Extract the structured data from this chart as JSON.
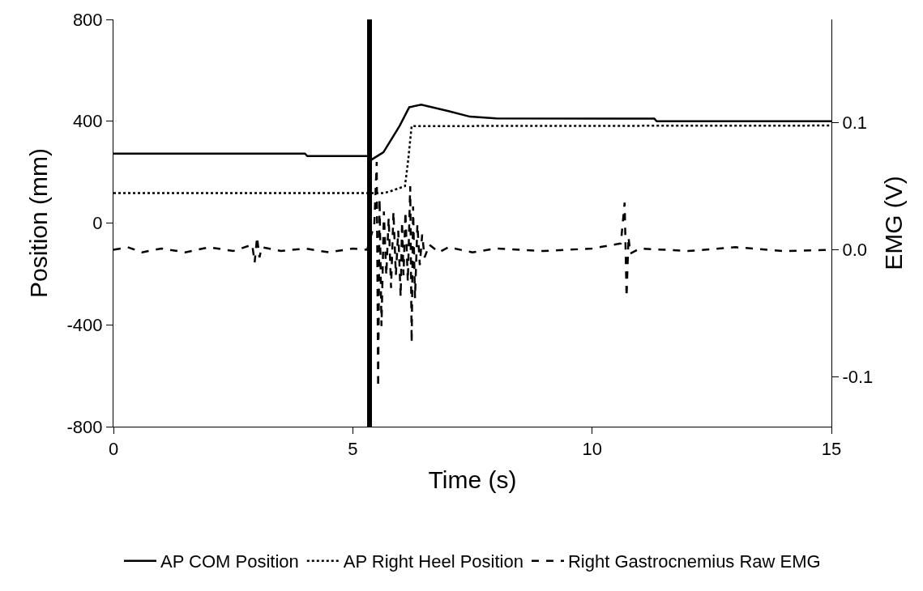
{
  "chart_data": {
    "type": "line",
    "xlabel": "Time (s)",
    "ylabel": "Position (mm)",
    "y2label": "EMG (V)",
    "xlim": [
      0,
      15
    ],
    "xticks": [
      0,
      5,
      10,
      15
    ],
    "ylim": [
      -800,
      800
    ],
    "yticks": [
      -800,
      -400,
      0,
      400,
      800
    ],
    "y2lim": [
      -0.139,
      0.181
    ],
    "y2ticks": [
      {
        "value": -0.1,
        "label": "-0.1"
      },
      {
        "value": 0,
        "label": "0.0"
      },
      {
        "value": 0.1,
        "label": "0.1"
      }
    ],
    "legend": "bottom",
    "marker": "none",
    "ref_lines": [
      {
        "axis": "x",
        "value": 5.35,
        "color": "#000000"
      }
    ],
    "series": [
      {
        "name": "AP COM Position",
        "color": "#000000",
        "line_style": "solid",
        "x": [
          0,
          4.0,
          4.05,
          5.3,
          5.4,
          5.64,
          5.98,
          6.18,
          6.43,
          7.0,
          7.45,
          8.0,
          11.3,
          11.35,
          15
        ],
        "values": [
          273,
          273,
          263,
          263,
          250,
          278,
          382,
          455,
          465,
          440,
          418,
          411,
          410,
          400,
          400
        ]
      },
      {
        "name": "AP Right Heel Position",
        "color": "#000000",
        "line_style": "dotted",
        "x": [
          0,
          5.64,
          5.76,
          6.09,
          6.15,
          6.23,
          15
        ],
        "values": [
          118,
          118,
          123,
          145,
          234,
          381,
          383
        ]
      },
      {
        "name": "Right Gastrocnemius Raw EMG",
        "color": "#000000",
        "line_style": "dashed",
        "axis": "y2",
        "x": [
          0,
          0.3,
          0.6,
          1.0,
          1.5,
          2.0,
          2.5,
          2.9,
          2.95,
          3.0,
          3.05,
          3.1,
          3.5,
          4.0,
          4.5,
          5.0,
          5.3,
          5.45,
          5.5,
          5.53,
          5.56,
          5.6,
          5.65,
          5.7,
          5.75,
          5.8,
          5.85,
          5.9,
          5.95,
          6.0,
          6.03,
          6.06,
          6.1,
          6.15,
          6.2,
          6.23,
          6.26,
          6.3,
          6.35,
          6.4,
          6.45,
          6.5,
          6.6,
          6.8,
          7.0,
          7.5,
          8.0,
          9.0,
          10.0,
          10.6,
          10.68,
          10.72,
          10.76,
          10.8,
          11.0,
          12,
          13,
          14,
          15
        ],
        "values": [
          0,
          0.002,
          -0.002,
          0.001,
          -0.002,
          0.002,
          -0.001,
          0.004,
          -0.01,
          0.01,
          -0.006,
          0.002,
          -0.001,
          0.001,
          -0.002,
          0.001,
          0,
          0.02,
          0.069,
          -0.108,
          0.04,
          -0.06,
          0.03,
          -0.02,
          0.025,
          -0.03,
          0.03,
          -0.02,
          0.015,
          -0.037,
          0.022,
          -0.02,
          0.03,
          -0.025,
          0.05,
          -0.073,
          0.034,
          -0.038,
          0.02,
          -0.012,
          0.012,
          -0.006,
          0.004,
          -0.002,
          0.002,
          -0.002,
          0.001,
          -0.001,
          0.001,
          0.005,
          0.037,
          -0.037,
          0.01,
          -0.003,
          0.001,
          -0.001,
          0.002,
          -0.001,
          0
        ]
      }
    ]
  }
}
